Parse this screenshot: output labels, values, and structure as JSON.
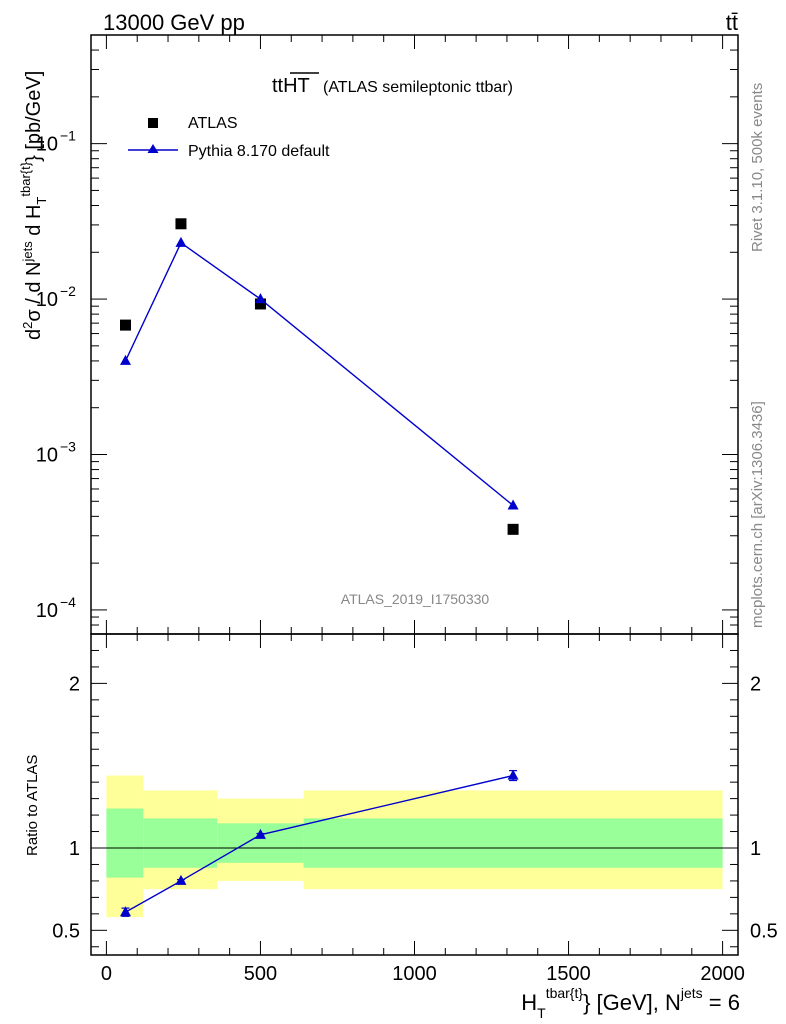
{
  "header": {
    "left": "13000 GeV pp",
    "right": "tt̄"
  },
  "side_labels": {
    "rivet": "Rivet 3.1.10,  500k events",
    "mcplots": "mcplots.cern.ch [arXiv:1306.3436]"
  },
  "watermark": "ATLAS_2019_I1750330",
  "chart_data": [
    {
      "type": "scatter",
      "panel": "main",
      "title_main": "ttHT",
      "title_sub": "(ATLAS semileptonic ttbar)",
      "ylabel": "d²σ / d N^jets d H_T^tbar{t} [pb/GeV]",
      "yscale": "log",
      "ylim": [
        7e-05,
        0.5
      ],
      "xlim": [
        -50,
        2050
      ],
      "ytick_labels": [
        "10^-4",
        "10^-3",
        "10^-2",
        "10^-1"
      ],
      "legend_placement": "top-left",
      "series": [
        {
          "name": "ATLAS",
          "marker": "square",
          "color": "#000000",
          "x": [
            62,
            242,
            500,
            1320
          ],
          "y": [
            0.0068,
            0.0305,
            0.0093,
            0.00033
          ]
        },
        {
          "name": "Pythia 8.170 default",
          "marker": "triangle",
          "line": true,
          "color": "#0000cc",
          "x": [
            62,
            242,
            500,
            1320
          ],
          "y": [
            0.004,
            0.023,
            0.01,
            0.00047
          ]
        }
      ]
    },
    {
      "type": "line",
      "panel": "ratio",
      "ylabel": "Ratio to ATLAS",
      "xlabel": "H_T^tbar{t} [GeV], N^jets = 6",
      "ylim": [
        0.35,
        2.3
      ],
      "xlim": [
        -50,
        2050
      ],
      "xticks": [
        0,
        500,
        1000,
        1500,
        2000
      ],
      "xtick_labels": [
        "0",
        "500",
        "1000",
        "1500",
        "2000"
      ],
      "yticks": [
        0.5,
        1,
        2
      ],
      "ytick_labels": [
        "0.5",
        "1",
        "2"
      ],
      "bands": [
        {
          "x0": 0,
          "x1": 120,
          "green": [
            0.82,
            1.24
          ],
          "yellow": [
            0.58,
            1.44
          ]
        },
        {
          "x0": 120,
          "x1": 360,
          "green": [
            0.88,
            1.18
          ],
          "yellow": [
            0.75,
            1.35
          ]
        },
        {
          "x0": 360,
          "x1": 640,
          "green": [
            0.91,
            1.15
          ],
          "yellow": [
            0.8,
            1.3
          ]
        },
        {
          "x0": 640,
          "x1": 2000,
          "green": [
            0.88,
            1.18
          ],
          "yellow": [
            0.75,
            1.35
          ]
        }
      ],
      "series": [
        {
          "name": "Pythia 8.170 default",
          "color": "#0000cc",
          "x": [
            62,
            242,
            500,
            1320
          ],
          "y": [
            0.61,
            0.8,
            1.08,
            1.44
          ],
          "yerr": [
            0.025,
            0.008,
            0.008,
            0.03
          ]
        }
      ]
    }
  ]
}
